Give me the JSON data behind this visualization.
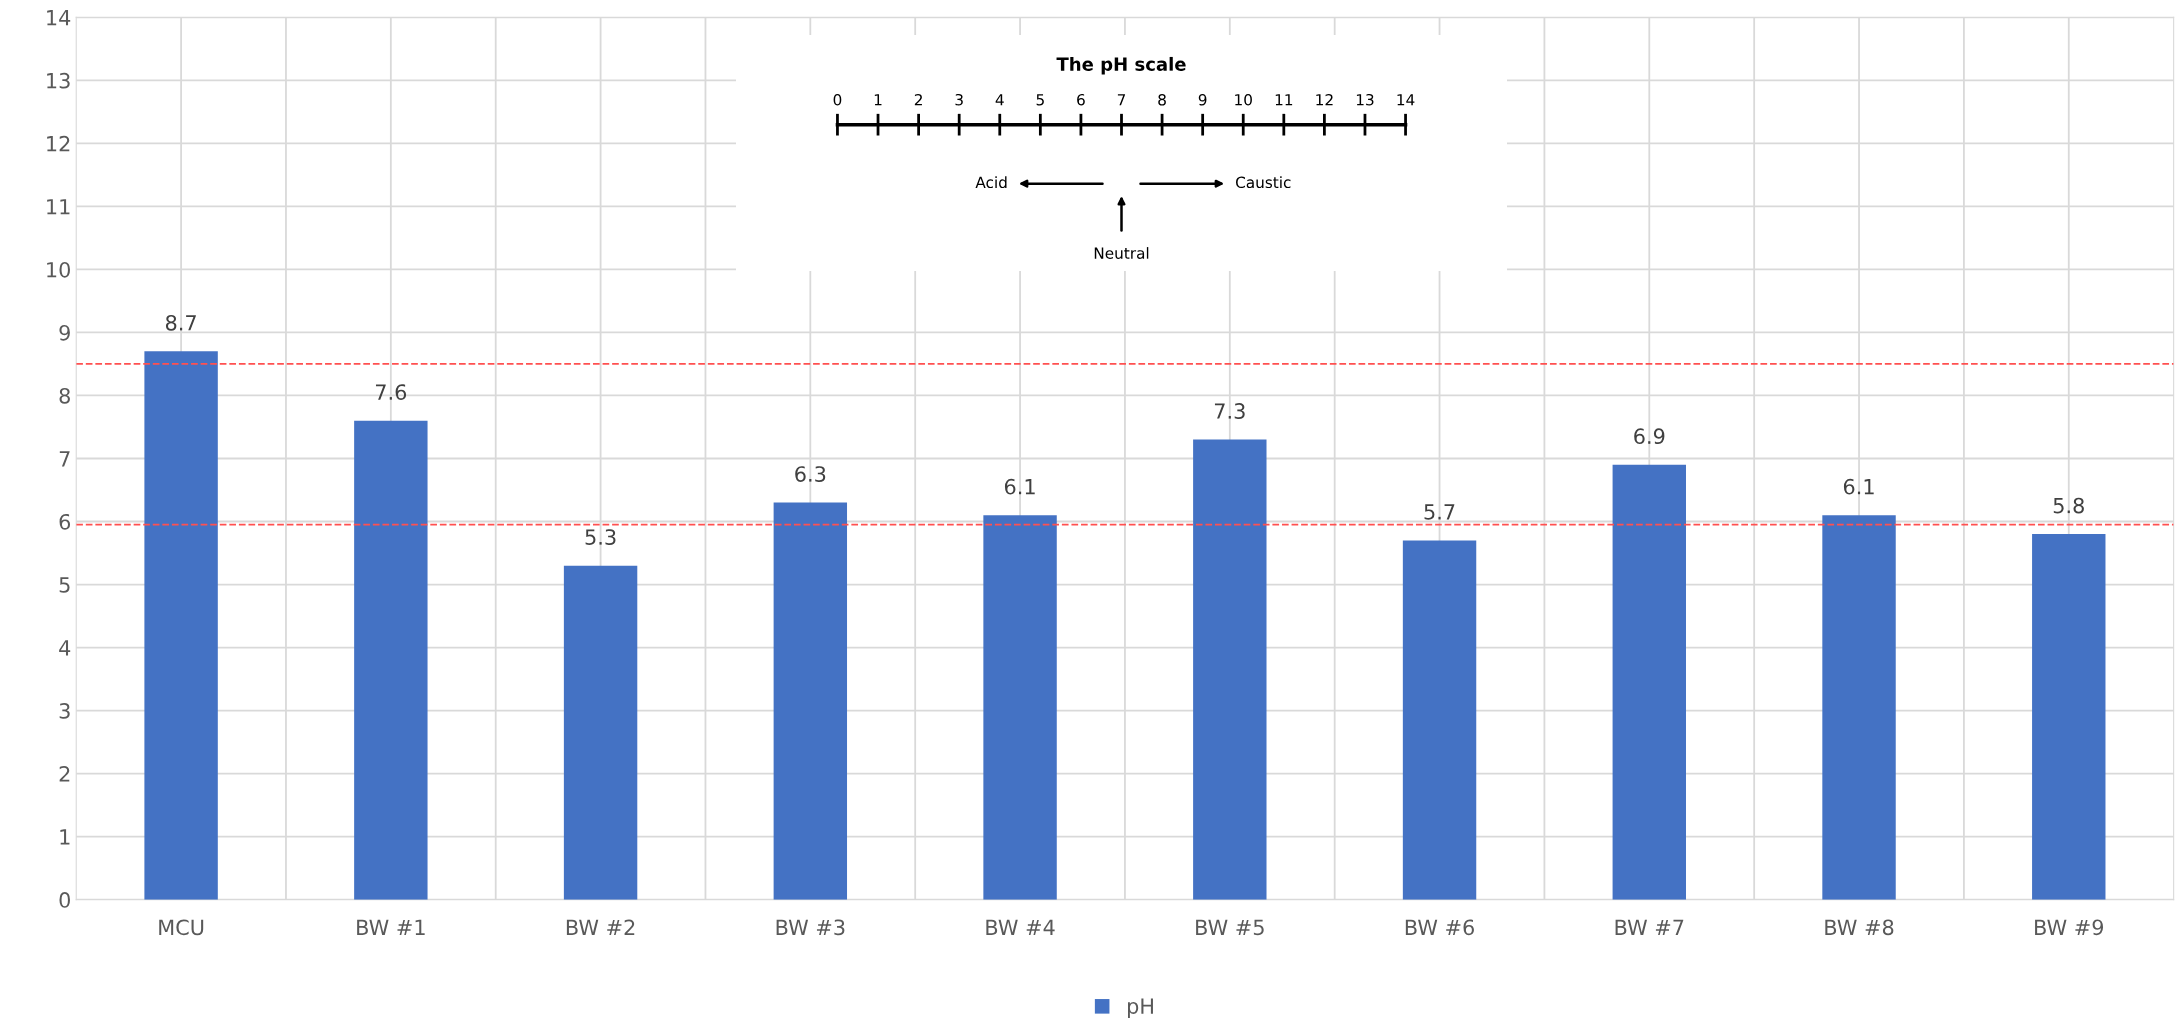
{
  "chart_data": {
    "type": "bar",
    "categories": [
      "MCU",
      "BW #1",
      "BW #2",
      "BW #3",
      "BW #4",
      "BW #5",
      "BW #6",
      "BW #7",
      "BW #8",
      "BW #9"
    ],
    "series": [
      {
        "name": "pH",
        "color": "#4472c4",
        "values": [
          8.7,
          7.6,
          5.3,
          6.3,
          6.1,
          7.3,
          5.7,
          6.9,
          6.1,
          5.8
        ]
      }
    ],
    "ylim": [
      0,
      14
    ],
    "yticks": [
      0,
      1,
      2,
      3,
      4,
      5,
      6,
      7,
      8,
      9,
      10,
      11,
      12,
      13,
      14
    ],
    "grid": true,
    "legend": "bottom",
    "data_labels": true,
    "ref_lines": [
      {
        "axis": "y",
        "value": 8.5,
        "color": "#ff5050",
        "line_style": "dashed"
      },
      {
        "axis": "y",
        "value": 5.95,
        "color": "#ff5050",
        "line_style": "dashed"
      }
    ],
    "annotations": [
      "The pH scale",
      "0",
      "1",
      "2",
      "3",
      "4",
      "5",
      "6",
      "7",
      "8",
      "9",
      "10",
      "11",
      "12",
      "13",
      "14",
      "Acid",
      "Caustic",
      "Neutral"
    ]
  }
}
